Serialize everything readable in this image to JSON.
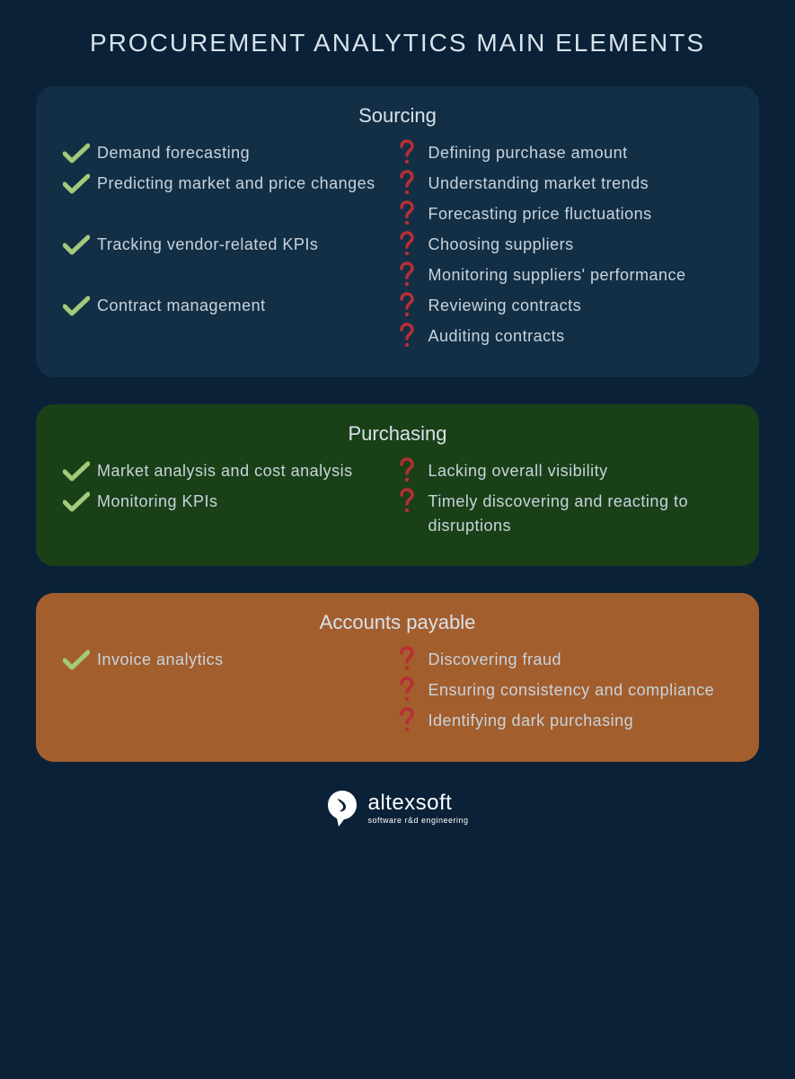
{
  "title": "PROCUREMENT ANALYTICS MAIN ELEMENTS",
  "colors": {
    "background": "#0a2138",
    "text": "#c8d4dc",
    "check": "#a3c97a",
    "question": "#b82e34",
    "section_sourcing": "#132f46",
    "section_purchasing": "#1a4018",
    "section_accounts": "#a35e2e"
  },
  "sections": [
    {
      "id": "sourcing",
      "title": "Sourcing",
      "bg": "#132f46",
      "rows": [
        {
          "left": "Demand forecasting",
          "right": "Defining purchase amount"
        },
        {
          "left": "Predicting market and price changes",
          "right": "Understanding market trends"
        },
        {
          "left": "",
          "right": "Forecasting price fluctuations"
        },
        {
          "left": "Tracking vendor-related KPIs",
          "right": "Choosing suppliers"
        },
        {
          "left": "",
          "right": "Monitoring suppliers' performance"
        },
        {
          "left": "Contract management",
          "right": "Reviewing contracts"
        },
        {
          "left": "",
          "right": "Auditing contracts"
        }
      ]
    },
    {
      "id": "purchasing",
      "title": "Purchasing",
      "bg": "#1a4018",
      "rows": [
        {
          "left": "Market analysis and cost analysis",
          "right": "Lacking overall visibility"
        },
        {
          "left": "Monitoring KPIs",
          "right": "Timely discovering and reacting to disruptions"
        }
      ]
    },
    {
      "id": "accounts",
      "title": "Accounts payable",
      "bg": "#a35e2e",
      "rows": [
        {
          "left": "Invoice analytics",
          "right": "Discovering fraud"
        },
        {
          "left": "",
          "right": "Ensuring consistency and compliance"
        },
        {
          "left": "",
          "right": "Identifying dark purchasing"
        }
      ]
    }
  ],
  "footer": {
    "brand": "altexsoft",
    "tagline": "software r&d engineering"
  },
  "typography": {
    "title_fontsize": 28,
    "section_title_fontsize": 22,
    "item_fontsize": 18
  }
}
